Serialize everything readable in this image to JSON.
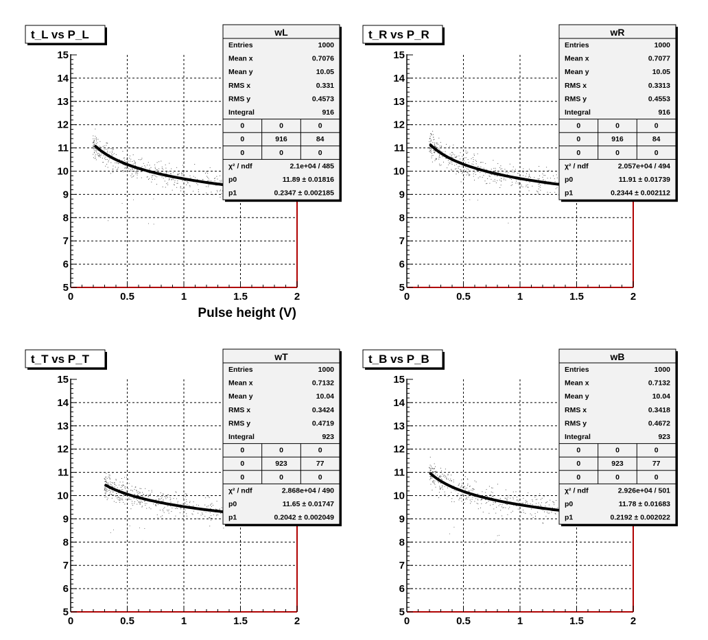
{
  "chart_data": [
    {
      "type": "scatter",
      "title": "t_L vs P_L",
      "xlabel": "Pulse height (V)",
      "ylabel": "",
      "xlim": [
        0,
        2
      ],
      "ylim": [
        5,
        15
      ],
      "x_ticks": [
        "0",
        "0.5",
        "1",
        "1.5",
        "2"
      ],
      "y_ticks": [
        "5",
        "6",
        "7",
        "8",
        "9",
        "10",
        "11",
        "12",
        "13",
        "14",
        "15"
      ],
      "grid": true,
      "scatter_summary": {
        "x_range": [
          0.2,
          1.4
        ],
        "y_center": 10.05,
        "y_rms": 0.4573
      },
      "fit": {
        "p0": 11.89,
        "p1": 0.2347,
        "x_range": [
          0.22,
          1.38
        ]
      },
      "stats": {
        "name": "wL",
        "rows": [
          {
            "label": "Entries",
            "value": "1000"
          },
          {
            "label": "Mean x",
            "value": "0.7076"
          },
          {
            "label": "Mean y",
            "value": "10.05"
          },
          {
            "label": "RMS x",
            "value": "0.331"
          },
          {
            "label": "RMS y",
            "value": "0.4573"
          },
          {
            "label": "Integral",
            "value": "916"
          }
        ],
        "grid": [
          [
            "0",
            "0",
            "0"
          ],
          [
            "0",
            "916",
            "84"
          ],
          [
            "0",
            "0",
            "0"
          ]
        ],
        "fit_rows": [
          {
            "label": "χ² / ndf",
            "value": "2.1e+04 / 485"
          },
          {
            "label": "p0",
            "value": "11.89 ± 0.01816"
          },
          {
            "label": "p1",
            "value": "0.2347 ± 0.002185"
          }
        ]
      }
    },
    {
      "type": "scatter",
      "title": "t_R vs P_R",
      "xlabel": "",
      "ylabel": "",
      "xlim": [
        0,
        2
      ],
      "ylim": [
        5,
        15
      ],
      "x_ticks": [
        "0",
        "0.5",
        "1",
        "1.5",
        "2"
      ],
      "y_ticks": [
        "5",
        "6",
        "7",
        "8",
        "9",
        "10",
        "11",
        "12",
        "13",
        "14",
        "15"
      ],
      "grid": true,
      "scatter_summary": {
        "x_range": [
          0.2,
          1.4
        ],
        "y_center": 10.05,
        "y_rms": 0.4553
      },
      "fit": {
        "p0": 11.91,
        "p1": 0.2344,
        "x_range": [
          0.21,
          1.38
        ]
      },
      "stats": {
        "name": "wR",
        "rows": [
          {
            "label": "Entries",
            "value": "1000"
          },
          {
            "label": "Mean x",
            "value": "0.7077"
          },
          {
            "label": "Mean y",
            "value": "10.05"
          },
          {
            "label": "RMS x",
            "value": "0.3313"
          },
          {
            "label": "RMS y",
            "value": "0.4553"
          },
          {
            "label": "Integral",
            "value": "916"
          }
        ],
        "grid": [
          [
            "0",
            "0",
            "0"
          ],
          [
            "0",
            "916",
            "84"
          ],
          [
            "0",
            "0",
            "0"
          ]
        ],
        "fit_rows": [
          {
            "label": "χ² / ndf",
            "value": "2.057e+04 / 494"
          },
          {
            "label": "p0",
            "value": "11.91 ± 0.01739"
          },
          {
            "label": "p1",
            "value": "0.2344 ± 0.002112"
          }
        ]
      }
    },
    {
      "type": "scatter",
      "title": "t_T vs P_T",
      "xlabel": "",
      "ylabel": "",
      "xlim": [
        0,
        2
      ],
      "ylim": [
        5,
        15
      ],
      "x_ticks": [
        "0",
        "0.5",
        "1",
        "1.5",
        "2"
      ],
      "y_ticks": [
        "5",
        "6",
        "7",
        "8",
        "9",
        "10",
        "11",
        "12",
        "13",
        "14",
        "15"
      ],
      "grid": true,
      "scatter_summary": {
        "x_range": [
          0.3,
          1.4
        ],
        "y_center": 10.04,
        "y_rms": 0.4719
      },
      "fit": {
        "p0": 11.65,
        "p1": 0.2042,
        "x_range": [
          0.31,
          1.38
        ]
      },
      "stats": {
        "name": "wT",
        "rows": [
          {
            "label": "Entries",
            "value": "1000"
          },
          {
            "label": "Mean x",
            "value": "0.7132"
          },
          {
            "label": "Mean y",
            "value": "10.04"
          },
          {
            "label": "RMS x",
            "value": "0.3424"
          },
          {
            "label": "RMS y",
            "value": "0.4719"
          },
          {
            "label": "Integral",
            "value": "923"
          }
        ],
        "grid": [
          [
            "0",
            "0",
            "0"
          ],
          [
            "0",
            "923",
            "77"
          ],
          [
            "0",
            "0",
            "0"
          ]
        ],
        "fit_rows": [
          {
            "label": "χ² / ndf",
            "value": "2.868e+04 / 490"
          },
          {
            "label": "p0",
            "value": "11.65 ± 0.01747"
          },
          {
            "label": "p1",
            "value": "0.2042 ± 0.002049"
          }
        ]
      }
    },
    {
      "type": "scatter",
      "title": "t_B vs P_B",
      "xlabel": "",
      "ylabel": "",
      "xlim": [
        0,
        2
      ],
      "ylim": [
        5,
        15
      ],
      "x_ticks": [
        "0",
        "0.5",
        "1",
        "1.5",
        "2"
      ],
      "y_ticks": [
        "5",
        "6",
        "7",
        "8",
        "9",
        "10",
        "11",
        "12",
        "13",
        "14",
        "15"
      ],
      "grid": true,
      "scatter_summary": {
        "x_range": [
          0.2,
          1.4
        ],
        "y_center": 10.04,
        "y_rms": 0.4672
      },
      "fit": {
        "p0": 11.78,
        "p1": 0.2192,
        "x_range": [
          0.21,
          1.38
        ]
      },
      "stats": {
        "name": "wB",
        "rows": [
          {
            "label": "Entries",
            "value": "1000"
          },
          {
            "label": "Mean x",
            "value": "0.7132"
          },
          {
            "label": "Mean y",
            "value": "10.04"
          },
          {
            "label": "RMS x",
            "value": "0.3418"
          },
          {
            "label": "RMS y",
            "value": "0.4672"
          },
          {
            "label": "Integral",
            "value": "923"
          }
        ],
        "grid": [
          [
            "0",
            "0",
            "0"
          ],
          [
            "0",
            "923",
            "77"
          ],
          [
            "0",
            "0",
            "0"
          ]
        ],
        "fit_rows": [
          {
            "label": "χ² / ndf",
            "value": "2.926e+04 / 501"
          },
          {
            "label": "p0",
            "value": "11.78 ± 0.01683"
          },
          {
            "label": "p1",
            "value": "0.2192 ± 0.002022"
          }
        ]
      }
    }
  ]
}
